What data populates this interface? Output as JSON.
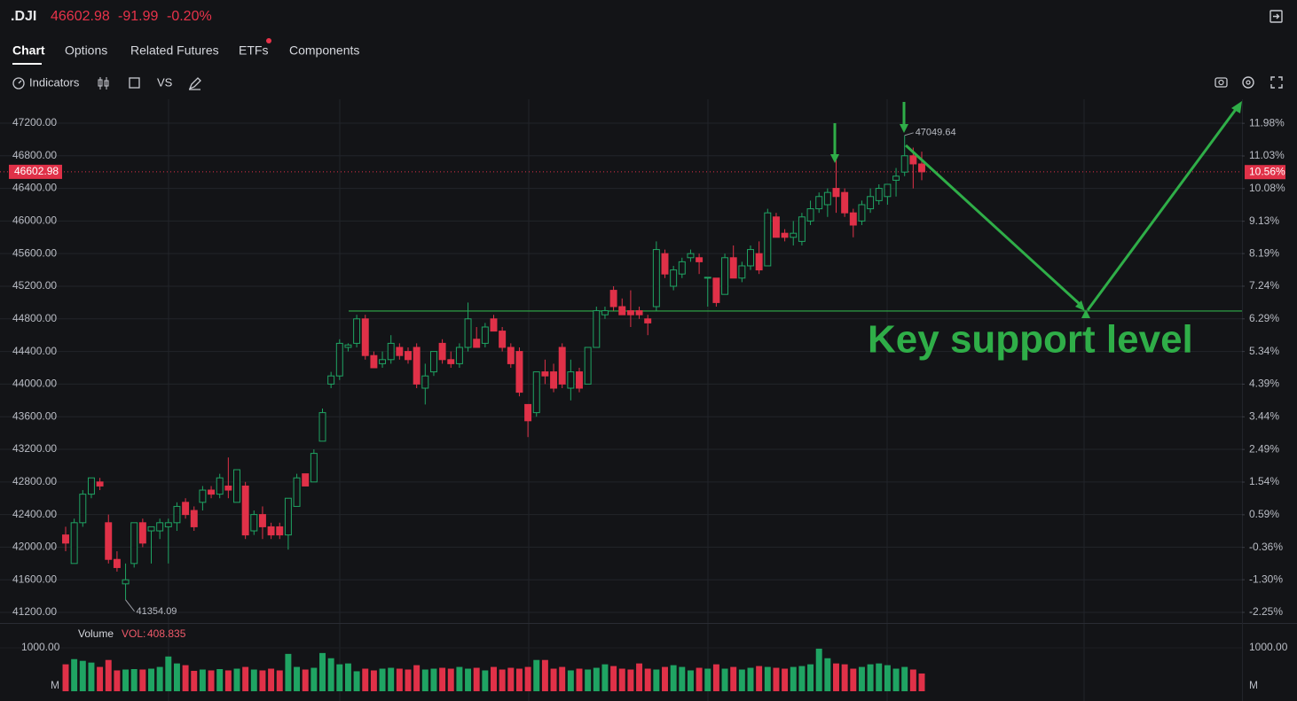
{
  "header": {
    "symbol": ".DJI",
    "change": "-91.99",
    "change_pct": "-0.20%"
  },
  "tabs": [
    "Chart",
    "Options",
    "Related Futures",
    "ETFs",
    "Components"
  ],
  "toolbar": {
    "indicators": "Indicators",
    "vs": "VS"
  },
  "chart_data": {
    "type": "candlestick",
    "up_color": "#1fa463",
    "down_color": "#e03148",
    "open": [
      42150,
      41800,
      42300,
      42650,
      42800,
      42300,
      41850,
      41550,
      41800,
      42300,
      42200,
      42200,
      42250,
      42300,
      42550,
      42450,
      42550,
      42700,
      42650,
      42750,
      42550,
      42750,
      42200,
      42400,
      42250,
      42250,
      42150,
      42500,
      42900,
      42800,
      43300,
      44000,
      44100,
      44450,
      44500,
      44800,
      44350,
      44250,
      44300,
      44450,
      44400,
      44450,
      43950,
      44150,
      44500,
      44300,
      44250,
      44450,
      44550,
      44500,
      44800,
      44650,
      44450,
      44400,
      43750,
      43650,
      44150,
      44150,
      44450,
      43950,
      44150,
      44000,
      44450,
      44850,
      45150,
      44950,
      44900,
      44900,
      44800,
      44950,
      45600,
      45200,
      45350,
      45550,
      45550,
      45300,
      45300,
      45100,
      45550,
      45300,
      45450,
      45600,
      45450,
      46050,
      45850,
      45800,
      45750,
      46000,
      46150,
      46200,
      46400,
      46350,
      46100,
      46000,
      46150,
      46250,
      46300,
      46500,
      46600,
      46800,
      46700
    ],
    "high": [
      42250,
      42350,
      42700,
      42850,
      42850,
      42400,
      41950,
      41800,
      42300,
      42350,
      42250,
      42350,
      42350,
      42550,
      42600,
      42500,
      42750,
      42750,
      42900,
      43100,
      42950,
      42800,
      42450,
      42500,
      42300,
      42300,
      42600,
      42900,
      42900,
      43200,
      43700,
      44150,
      44550,
      44500,
      44850,
      44850,
      44400,
      44400,
      44600,
      44500,
      44450,
      44500,
      44250,
      44400,
      44550,
      44400,
      44500,
      45000,
      44700,
      44750,
      44850,
      44700,
      44500,
      44450,
      43750,
      44150,
      44300,
      44250,
      44500,
      44300,
      44200,
      44450,
      44950,
      44950,
      45200,
      45050,
      45150,
      44950,
      44850,
      45750,
      45650,
      45450,
      45550,
      45650,
      45600,
      45300,
      45300,
      45600,
      45700,
      45500,
      45700,
      45750,
      46150,
      46100,
      45900,
      46000,
      46100,
      46250,
      46350,
      46400,
      46750,
      46400,
      46150,
      46250,
      46400,
      46450,
      46450,
      46650,
      47049.64,
      46900,
      46850
    ],
    "low": [
      41950,
      41800,
      42250,
      42600,
      42700,
      41800,
      41700,
      41354.09,
      41750,
      42000,
      41800,
      42100,
      41800,
      42200,
      42350,
      42200,
      42450,
      42600,
      42600,
      42600,
      42550,
      42100,
      42150,
      42100,
      42100,
      42100,
      41970,
      42500,
      42750,
      42800,
      43300,
      43950,
      44050,
      44400,
      44450,
      44300,
      44200,
      44200,
      44250,
      44300,
      44250,
      43950,
      43750,
      44100,
      44250,
      44200,
      44200,
      44400,
      44450,
      44450,
      44650,
      44400,
      44200,
      43850,
      43350,
      43600,
      44000,
      43900,
      43950,
      43800,
      43900,
      44000,
      44450,
      44800,
      44900,
      44850,
      44700,
      44800,
      44600,
      44900,
      45300,
      45150,
      45300,
      45500,
      45350,
      44950,
      44950,
      45100,
      45300,
      45250,
      45400,
      45350,
      45450,
      45800,
      45750,
      45700,
      45700,
      45950,
      46100,
      46050,
      46100,
      46050,
      45800,
      45950,
      46100,
      46200,
      46200,
      46300,
      46550,
      46400,
      46500
    ],
    "close": [
      42050,
      42300,
      42650,
      42850,
      42750,
      41850,
      41750,
      41600,
      42300,
      42050,
      42250,
      42300,
      42300,
      42500,
      42400,
      42250,
      42700,
      42650,
      42850,
      42700,
      42950,
      42150,
      42400,
      42250,
      42150,
      42150,
      42600,
      42850,
      42750,
      43150,
      43650,
      44100,
      44500,
      44480,
      44800,
      44350,
      44200,
      44300,
      44500,
      44350,
      44300,
      44000,
      44100,
      44400,
      44300,
      44250,
      44450,
      44800,
      44450,
      44700,
      44650,
      44450,
      44250,
      43900,
      43550,
      44150,
      44100,
      43950,
      44000,
      44150,
      43950,
      44450,
      44900,
      44900,
      44950,
      44850,
      44850,
      44850,
      44750,
      45650,
      45350,
      45400,
      45500,
      45600,
      45500,
      45310,
      45000,
      45550,
      45300,
      45450,
      45650,
      45400,
      46100,
      45800,
      45800,
      45850,
      46050,
      46150,
      46300,
      46350,
      46300,
      46100,
      45950,
      46200,
      46300,
      46400,
      46450,
      46550,
      46800,
      46700,
      46602.98
    ],
    "ylim": [
      41070,
      47493
    ],
    "yticks": [
      {
        "value": 47200,
        "label": "47200.00"
      },
      {
        "value": 46800,
        "label": "46800.00"
      },
      {
        "value": 46400,
        "label": "46400.00"
      },
      {
        "value": 46000,
        "label": "46000.00"
      },
      {
        "value": 45600,
        "label": "45600.00"
      },
      {
        "value": 45200,
        "label": "45200.00"
      },
      {
        "value": 44800,
        "label": "44800.00"
      },
      {
        "value": 44400,
        "label": "44400.00"
      },
      {
        "value": 44000,
        "label": "44000.00"
      },
      {
        "value": 43600,
        "label": "43600.00"
      },
      {
        "value": 43200,
        "label": "43200.00"
      },
      {
        "value": 42800,
        "label": "42800.00"
      },
      {
        "value": 42400,
        "label": "42400.00"
      },
      {
        "value": 42000,
        "label": "42000.00"
      },
      {
        "value": 41600,
        "label": "41600.00"
      },
      {
        "value": 41200,
        "label": "41200.00"
      }
    ],
    "y2lim": [
      -2.56,
      12.68
    ],
    "y2ticks": [
      {
        "value": 11.98,
        "label": "11.98%"
      },
      {
        "value": 11.03,
        "label": "11.03%"
      },
      {
        "value": 10.08,
        "label": "10.08%"
      },
      {
        "value": 9.13,
        "label": "9.13%"
      },
      {
        "value": 8.19,
        "label": "8.19%"
      },
      {
        "value": 7.24,
        "label": "7.24%"
      },
      {
        "value": 6.29,
        "label": "6.29%"
      },
      {
        "value": 5.34,
        "label": "5.34%"
      },
      {
        "value": 4.39,
        "label": "4.39%"
      },
      {
        "value": 3.44,
        "label": "3.44%"
      },
      {
        "value": 2.49,
        "label": "2.49%"
      },
      {
        "value": 1.54,
        "label": "1.54%"
      },
      {
        "value": 0.59,
        "label": "0.59%"
      },
      {
        "value": -0.36,
        "label": "-0.36%"
      },
      {
        "value": -1.3,
        "label": "-1.30%"
      },
      {
        "value": -2.25,
        "label": "-2.25%"
      }
    ],
    "grid": true,
    "last_change_pct": {
      "value": 10.56,
      "label": "10.56%"
    },
    "support_level": 44896,
    "annotation": "Key support level",
    "volume": {
      "title": "Volume",
      "label": "VOL:",
      "unit": "M",
      "values": [
        620,
        740,
        700,
        660,
        560,
        720,
        480,
        500,
        510,
        500,
        520,
        560,
        800,
        640,
        600,
        470,
        500,
        480,
        510,
        480,
        520,
        560,
        500,
        480,
        520,
        480,
        860,
        560,
        500,
        540,
        880,
        760,
        620,
        640,
        460,
        520,
        480,
        520,
        540,
        520,
        500,
        600,
        500,
        520,
        540,
        520,
        560,
        520,
        540,
        480,
        560,
        500,
        540,
        520,
        560,
        720,
        720,
        520,
        560,
        480,
        520,
        500,
        540,
        620,
        580,
        520,
        500,
        640,
        520,
        500,
        560,
        600,
        560,
        480,
        540,
        520,
        620,
        520,
        560,
        500,
        540,
        580,
        560,
        540,
        520,
        560,
        580,
        620,
        980,
        760,
        640,
        620,
        520,
        560,
        620,
        640,
        600,
        520,
        560,
        500,
        408.835
      ],
      "ylim": [
        0,
        1530
      ],
      "yticks": [
        {
          "value": 1000,
          "label": "1000.00"
        }
      ]
    }
  }
}
